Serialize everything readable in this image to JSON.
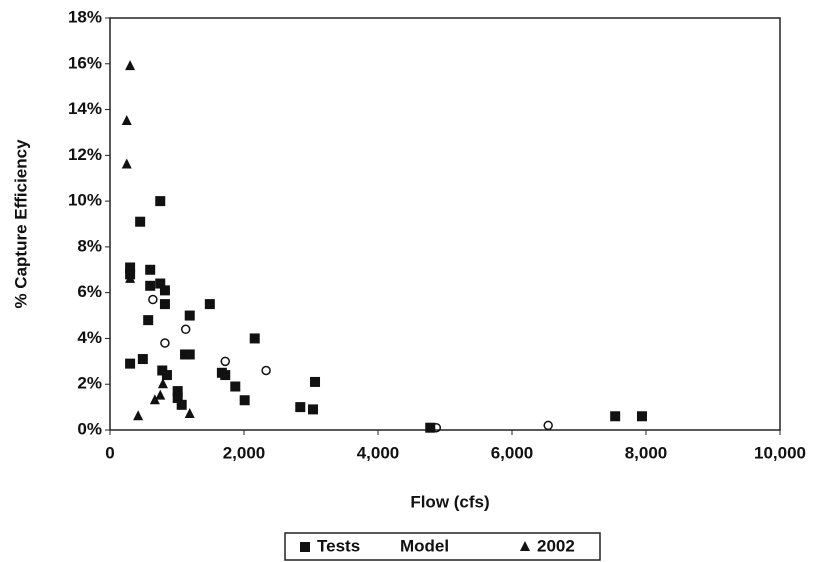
{
  "chart_data": {
    "type": "scatter",
    "x_label": "Flow (cfs)",
    "y_label": "% Capture Efficiency",
    "xlim": [
      0,
      10000
    ],
    "ylim": [
      0,
      18
    ],
    "xticks": [
      0,
      {
        "value": 2000,
        "label": "2,000"
      },
      {
        "value": 4000,
        "label": "4,000"
      },
      {
        "value": 6000,
        "label": "6,000"
      },
      {
        "value": 8000,
        "label": "8,000"
      },
      {
        "value": 10000,
        "label": "10,000"
      }
    ],
    "yticks": [
      {
        "value": 0,
        "label": "0%"
      },
      {
        "value": 2,
        "label": "2%"
      },
      {
        "value": 4,
        "label": "4%"
      },
      {
        "value": 6,
        "label": "6%"
      },
      {
        "value": 8,
        "label": "8%"
      },
      {
        "value": 10,
        "label": "10%"
      },
      {
        "value": 12,
        "label": "12%"
      },
      {
        "value": 14,
        "label": "14%"
      },
      {
        "value": 16,
        "label": "16%"
      },
      {
        "value": 18,
        "label": "18%"
      }
    ],
    "legend": "bottom",
    "series": [
      {
        "name": "Tests",
        "color": "#111111",
        "marker": "square",
        "x": [
          300,
          300,
          450,
          750,
          600,
          600,
          750,
          820,
          820,
          570,
          1190,
          1490,
          2160,
          300,
          490,
          780,
          850,
          1010,
          1010,
          1070,
          1120,
          1190,
          1670,
          1720,
          1870,
          2010,
          2840,
          3030,
          3060,
          7540,
          7940,
          4780
        ],
        "values": [
          7.1,
          6.8,
          9.1,
          10.0,
          7.0,
          6.3,
          6.4,
          6.1,
          5.5,
          4.8,
          5.0,
          5.5,
          4.0,
          2.9,
          3.1,
          2.6,
          2.4,
          1.7,
          1.4,
          1.1,
          3.3,
          3.3,
          2.5,
          2.4,
          1.9,
          1.3,
          1.0,
          0.9,
          2.1,
          0.6,
          0.6,
          0.1
        ]
      },
      {
        "name": "Model",
        "color": "#111111",
        "marker": "circle",
        "x": [
          640,
          820,
          1130,
          2330,
          4870,
          6540,
          1720
        ],
        "values": [
          5.7,
          3.8,
          4.4,
          2.6,
          0.1,
          0.2,
          3.0
        ]
      },
      {
        "name": "2002",
        "color": "#111111",
        "marker": "triangle",
        "x": [
          300,
          250,
          250,
          300,
          420,
          670,
          750,
          790,
          1190
        ],
        "values": [
          15.9,
          13.5,
          11.6,
          6.6,
          0.6,
          1.3,
          1.5,
          2.0,
          0.7
        ]
      }
    ]
  }
}
